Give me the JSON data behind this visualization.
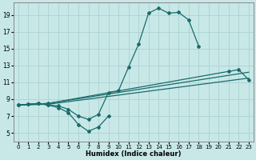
{
  "xlabel": "Humidex (Indice chaleur)",
  "bg_color": "#c8e8e8",
  "grid_color": "#b0d4d4",
  "line_color": "#1a6b6b",
  "xlim": [
    -0.5,
    23.5
  ],
  "ylim": [
    4,
    20.5
  ],
  "xticks": [
    0,
    1,
    2,
    3,
    4,
    5,
    6,
    7,
    8,
    9,
    10,
    11,
    12,
    13,
    14,
    15,
    16,
    17,
    18,
    19,
    20,
    21,
    22,
    23
  ],
  "yticks": [
    5,
    7,
    9,
    11,
    13,
    15,
    17,
    19
  ],
  "lines": [
    {
      "x": [
        0,
        1,
        2,
        3,
        4,
        5,
        6,
        7,
        8,
        9,
        10,
        11,
        12,
        13,
        14,
        15,
        16,
        17,
        18,
        19,
        20,
        21,
        22,
        23
      ],
      "y": [
        8.3,
        8.4,
        8.5,
        8.3,
        8.2,
        7.8,
        7.0,
        6.6,
        7.2,
        9.8,
        10.0,
        12.8,
        15.5,
        19.2,
        19.8,
        19.2,
        19.3,
        18.4,
        15.3,
        null,
        null,
        null,
        null,
        null
      ],
      "marker": true
    },
    {
      "x": [
        0,
        3,
        23
      ],
      "y": [
        8.3,
        8.5,
        12.2
      ],
      "marker": false
    },
    {
      "x": [
        0,
        3,
        21,
        22,
        23
      ],
      "y": [
        8.3,
        8.5,
        12.3,
        12.5,
        11.3
      ],
      "marker": true
    },
    {
      "x": [
        0,
        3,
        23
      ],
      "y": [
        8.3,
        8.4,
        11.5
      ],
      "marker": false
    },
    {
      "x": [
        0,
        1,
        2,
        3,
        4,
        5,
        6,
        7,
        8,
        9
      ],
      "y": [
        8.3,
        8.4,
        8.5,
        8.3,
        8.0,
        7.4,
        6.0,
        5.2,
        5.7,
        7.0
      ],
      "marker": true
    }
  ]
}
